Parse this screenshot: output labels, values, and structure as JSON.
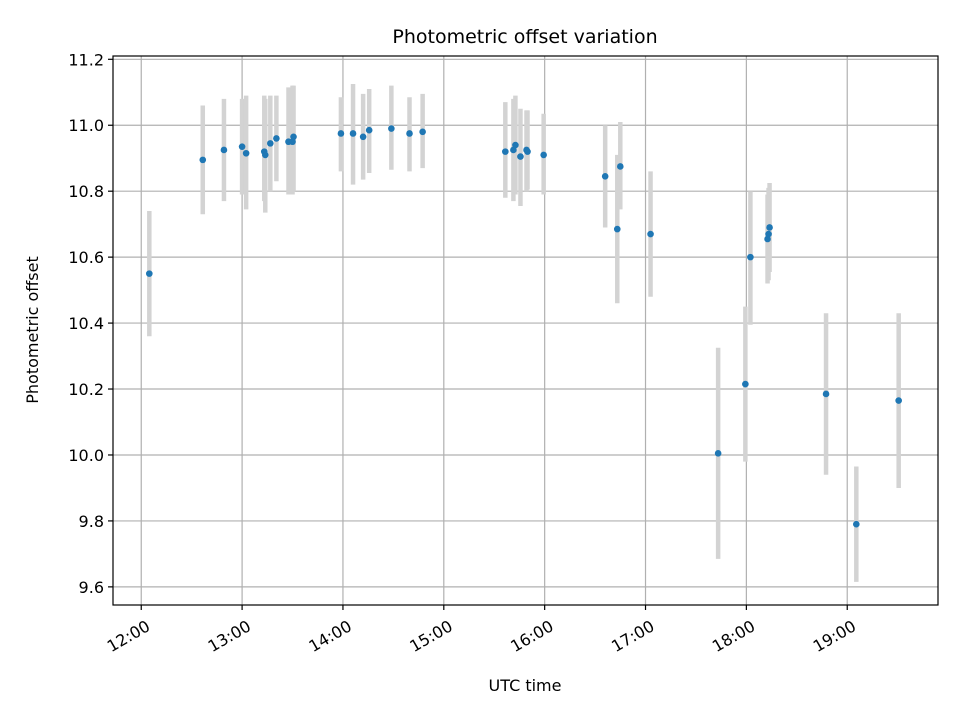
{
  "chart_data": {
    "type": "scatter",
    "title": "Photometric offset variation",
    "xlabel": "UTC time",
    "ylabel": "Photometric offset",
    "x_unit": "hours UTC",
    "xlim": [
      11.72,
      19.9
    ],
    "ylim": [
      9.545,
      11.21
    ],
    "x_ticks": [
      {
        "value": 12,
        "label": "12:00"
      },
      {
        "value": 13,
        "label": "13:00"
      },
      {
        "value": 14,
        "label": "14:00"
      },
      {
        "value": 15,
        "label": "15:00"
      },
      {
        "value": 16,
        "label": "16:00"
      },
      {
        "value": 17,
        "label": "17:00"
      },
      {
        "value": 18,
        "label": "18:00"
      },
      {
        "value": 19,
        "label": "19:00"
      }
    ],
    "y_ticks": [
      {
        "value": 9.6,
        "label": "9.6"
      },
      {
        "value": 9.8,
        "label": "9.8"
      },
      {
        "value": 10.0,
        "label": "10.0"
      },
      {
        "value": 10.2,
        "label": "10.2"
      },
      {
        "value": 10.4,
        "label": "10.4"
      },
      {
        "value": 10.6,
        "label": "10.6"
      },
      {
        "value": 10.8,
        "label": "10.8"
      },
      {
        "value": 11.0,
        "label": "11.0"
      },
      {
        "value": 11.2,
        "label": "11.2"
      }
    ],
    "grid": true,
    "legend": "none",
    "point_color": "#1f77b4",
    "errorbar_color": "#d3d3d3",
    "points": [
      {
        "x": 12.08,
        "y": 10.55,
        "lo": 10.36,
        "hi": 10.74
      },
      {
        "x": 12.61,
        "y": 10.895,
        "lo": 10.73,
        "hi": 11.06
      },
      {
        "x": 12.82,
        "y": 10.925,
        "lo": 10.77,
        "hi": 11.08
      },
      {
        "x": 13.0,
        "y": 10.935,
        "lo": 10.79,
        "hi": 11.08
      },
      {
        "x": 13.04,
        "y": 10.915,
        "lo": 10.745,
        "hi": 11.09
      },
      {
        "x": 13.22,
        "y": 10.92,
        "lo": 10.77,
        "hi": 11.09
      },
      {
        "x": 13.23,
        "y": 10.91,
        "lo": 10.735,
        "hi": 11.08
      },
      {
        "x": 13.28,
        "y": 10.945,
        "lo": 10.8,
        "hi": 11.09
      },
      {
        "x": 13.34,
        "y": 10.96,
        "lo": 10.83,
        "hi": 11.09
      },
      {
        "x": 13.46,
        "y": 10.95,
        "lo": 10.79,
        "hi": 11.115
      },
      {
        "x": 13.5,
        "y": 10.95,
        "lo": 10.79,
        "hi": 11.12
      },
      {
        "x": 13.51,
        "y": 10.965,
        "lo": 10.8,
        "hi": 11.12
      },
      {
        "x": 13.98,
        "y": 10.975,
        "lo": 10.86,
        "hi": 11.085
      },
      {
        "x": 14.1,
        "y": 10.975,
        "lo": 10.82,
        "hi": 11.125
      },
      {
        "x": 14.2,
        "y": 10.965,
        "lo": 10.835,
        "hi": 11.095
      },
      {
        "x": 14.26,
        "y": 10.985,
        "lo": 10.855,
        "hi": 11.11
      },
      {
        "x": 14.48,
        "y": 10.99,
        "lo": 10.865,
        "hi": 11.12
      },
      {
        "x": 14.66,
        "y": 10.975,
        "lo": 10.86,
        "hi": 11.085
      },
      {
        "x": 14.79,
        "y": 10.98,
        "lo": 10.87,
        "hi": 11.095
      },
      {
        "x": 15.61,
        "y": 10.92,
        "lo": 10.78,
        "hi": 11.07
      },
      {
        "x": 15.69,
        "y": 10.925,
        "lo": 10.77,
        "hi": 11.08
      },
      {
        "x": 15.71,
        "y": 10.94,
        "lo": 10.79,
        "hi": 11.09
      },
      {
        "x": 15.76,
        "y": 10.905,
        "lo": 10.755,
        "hi": 11.05
      },
      {
        "x": 15.82,
        "y": 10.925,
        "lo": 10.8,
        "hi": 11.045
      },
      {
        "x": 15.83,
        "y": 10.92,
        "lo": 10.805,
        "hi": 11.045
      },
      {
        "x": 15.99,
        "y": 10.91,
        "lo": 10.79,
        "hi": 11.035
      },
      {
        "x": 16.6,
        "y": 10.845,
        "lo": 10.69,
        "hi": 11.0
      },
      {
        "x": 16.72,
        "y": 10.685,
        "lo": 10.46,
        "hi": 10.91
      },
      {
        "x": 16.75,
        "y": 10.875,
        "lo": 10.745,
        "hi": 11.01
      },
      {
        "x": 17.05,
        "y": 10.67,
        "lo": 10.48,
        "hi": 10.86
      },
      {
        "x": 17.72,
        "y": 10.005,
        "lo": 9.685,
        "hi": 10.325
      },
      {
        "x": 17.99,
        "y": 10.215,
        "lo": 9.98,
        "hi": 10.45
      },
      {
        "x": 18.04,
        "y": 10.6,
        "lo": 10.395,
        "hi": 10.8
      },
      {
        "x": 18.21,
        "y": 10.655,
        "lo": 10.52,
        "hi": 10.79
      },
      {
        "x": 18.22,
        "y": 10.67,
        "lo": 10.53,
        "hi": 10.81
      },
      {
        "x": 18.23,
        "y": 10.69,
        "lo": 10.555,
        "hi": 10.825
      },
      {
        "x": 18.79,
        "y": 10.185,
        "lo": 9.94,
        "hi": 10.43
      },
      {
        "x": 19.09,
        "y": 9.79,
        "lo": 9.615,
        "hi": 9.965
      },
      {
        "x": 19.51,
        "y": 10.165,
        "lo": 9.9,
        "hi": 10.43
      }
    ]
  }
}
